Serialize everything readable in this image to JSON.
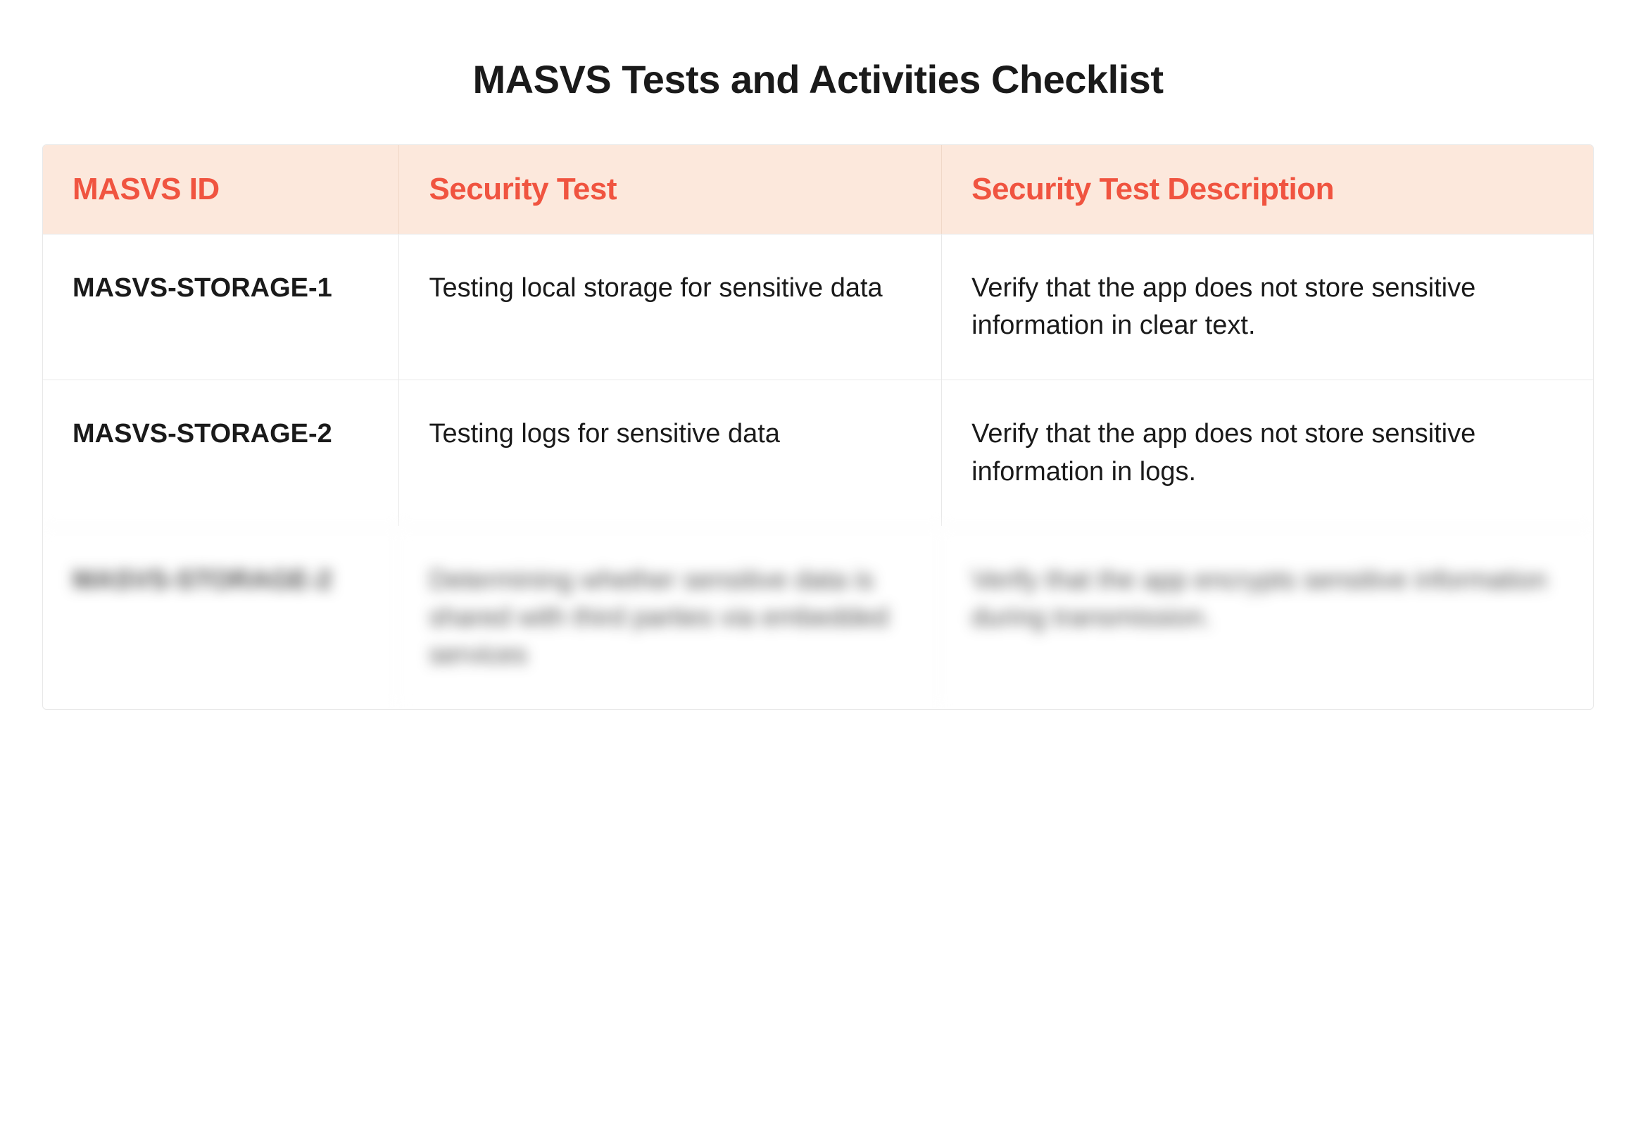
{
  "title": "MASVS Tests and Activities Checklist",
  "table": {
    "type": "table",
    "background_color": "#ffffff",
    "header_bg_color": "#fce8dc",
    "header_text_color": "#f05440",
    "border_color": "#e8e8e8",
    "title_fontsize": 56,
    "header_fontsize": 44,
    "cell_fontsize": 38,
    "columns": [
      {
        "key": "id",
        "label": "MASVS ID",
        "width_pct": 23
      },
      {
        "key": "test",
        "label": "Security Test",
        "width_pct": 35
      },
      {
        "key": "desc",
        "label": "Security Test Description",
        "width_pct": 42
      }
    ],
    "rows": [
      {
        "id": "MASVS-STORAGE-1",
        "test": "Testing local storage for sensitive data",
        "desc": "Verify that the app does not store sensitive information in clear text.",
        "blurred": false
      },
      {
        "id": "MASVS-STORAGE-2",
        "test": "Testing logs for sensitive data",
        "desc": "Verify that the app does not store sensitive information in logs.",
        "blurred": false
      },
      {
        "id": "MASVS-STORAGE-2",
        "test": "Determining whether sensitive data is shared with third parties via embedded services",
        "desc": "Verify that the app encrypts sensitive information during transmission.",
        "blurred": true
      }
    ]
  }
}
